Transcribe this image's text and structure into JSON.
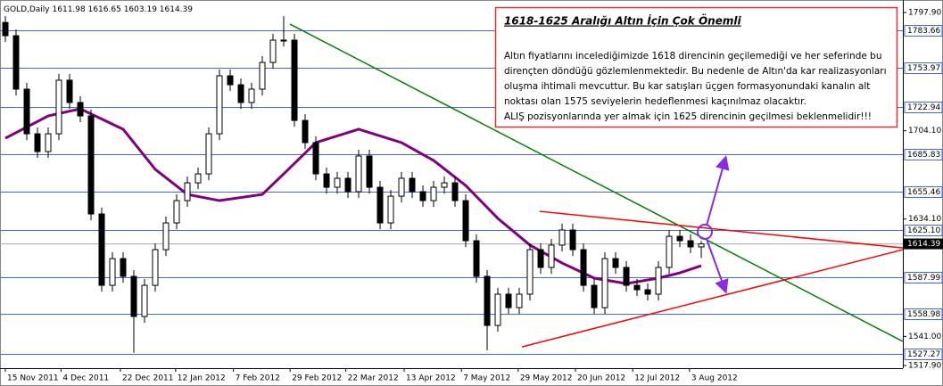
{
  "chart_data": {
    "type": "candlestick",
    "symbol": "GOLD,Daily",
    "open": [
      1790,
      1779.5,
      1737.1,
      1701.7,
      1687.6,
      1701.7,
      1744.2,
      1726.5,
      1715.9,
      1638.1,
      1581.5,
      1602.7,
      1588.6,
      1556.8,
      1581.5,
      1609.8,
      1631.0,
      1648.7,
      1662.8,
      1669.9,
      1701.7,
      1747.7,
      1740.6,
      1726.5,
      1737.1,
      1758.3,
      1776.0,
      1776.0,
      1712.3,
      1694.7,
      1669.9,
      1659.3,
      1666.4,
      1655.8,
      1684.1,
      1659.3,
      1631.0,
      1652.2,
      1666.4,
      1655.8,
      1648.7,
      1659.3,
      1662.8,
      1648.7,
      1616.9,
      1588.6,
      1549.7,
      1574.5,
      1563.8,
      1574.5,
      1609.8,
      1595.7,
      1613.4,
      1625.4,
      1609.8,
      1581.5,
      1563.8,
      1602.7,
      1595.7,
      1581.5,
      1578.0,
      1574.5,
      1595.7,
      1620.4,
      1616.9,
      1611.98
    ],
    "high": [
      1795,
      1784.5,
      1742.1,
      1706.7,
      1706.7,
      1749.2,
      1749.2,
      1731.5,
      1720.9,
      1643.1,
      1607.7,
      1607.7,
      1593.6,
      1586.5,
      1614.8,
      1636.0,
      1653.7,
      1667.8,
      1674.9,
      1706.7,
      1752.7,
      1752.7,
      1745.6,
      1742.1,
      1763.3,
      1781.0,
      1795,
      1781.0,
      1717.3,
      1699.7,
      1674.9,
      1671.4,
      1671.4,
      1689.1,
      1689.1,
      1664.3,
      1657.2,
      1671.4,
      1671.4,
      1660.8,
      1664.3,
      1667.8,
      1667.8,
      1653.7,
      1621.9,
      1593.6,
      1579.5,
      1579.5,
      1579.5,
      1614.8,
      1614.8,
      1618.4,
      1630.4,
      1630.4,
      1614.8,
      1586.5,
      1607.7,
      1607.7,
      1600.7,
      1586.5,
      1583.0,
      1600.7,
      1625.4,
      1625.4,
      1621.9,
      1616.65
    ],
    "low": [
      1774.5,
      1732.1,
      1696.7,
      1682.6,
      1682.6,
      1696.7,
      1721.5,
      1710.9,
      1633.1,
      1576.5,
      1576.5,
      1583.6,
      1528,
      1551.8,
      1576.5,
      1604.8,
      1626.0,
      1643.7,
      1657.8,
      1664.9,
      1696.7,
      1735.6,
      1721.5,
      1721.5,
      1732.1,
      1753.3,
      1771.0,
      1707.3,
      1689.7,
      1664.9,
      1654.3,
      1654.3,
      1650.8,
      1650.8,
      1654.3,
      1626.0,
      1626.0,
      1647.2,
      1650.8,
      1643.7,
      1643.7,
      1654.3,
      1643.7,
      1611.9,
      1583.6,
      1530,
      1544.7,
      1558.8,
      1558.8,
      1569.5,
      1590.7,
      1590.7,
      1608.4,
      1604.8,
      1576.5,
      1558.8,
      1558.8,
      1590.7,
      1576.5,
      1573.0,
      1569.5,
      1569.5,
      1590.7,
      1611.9,
      1606.98,
      1603.19
    ],
    "close": [
      1779.5,
      1737.1,
      1701.7,
      1687.6,
      1701.7,
      1744.2,
      1726.5,
      1715.9,
      1638.1,
      1581.5,
      1602.7,
      1588.6,
      1556.8,
      1581.5,
      1609.8,
      1631.0,
      1648.7,
      1662.8,
      1669.9,
      1701.7,
      1747.7,
      1740.6,
      1726.5,
      1737.1,
      1758.3,
      1776.0,
      1776.0,
      1712.3,
      1694.7,
      1669.9,
      1659.3,
      1666.4,
      1655.8,
      1684.1,
      1659.3,
      1631.0,
      1652.2,
      1666.4,
      1655.8,
      1648.7,
      1659.3,
      1662.8,
      1648.7,
      1616.9,
      1588.6,
      1549.7,
      1574.5,
      1563.8,
      1574.5,
      1609.8,
      1595.7,
      1613.4,
      1625.4,
      1609.8,
      1581.5,
      1563.8,
      1602.7,
      1595.7,
      1581.5,
      1578.0,
      1574.5,
      1595.7,
      1620.4,
      1616.9,
      1611.98,
      1614.39
    ],
    "ma": {
      "color": "#800080",
      "x": [
        0,
        4,
        7,
        11,
        14,
        17,
        20,
        24,
        26,
        29,
        33,
        37,
        40,
        43,
        46,
        49,
        52,
        55,
        58,
        61,
        63,
        65
      ],
      "values": [
        1698.2,
        1715.9,
        1721.5,
        1705.3,
        1673.5,
        1653.6,
        1648.7,
        1653.6,
        1669.9,
        1694.7,
        1705.3,
        1694.7,
        1680.5,
        1660.7,
        1634.6,
        1613.4,
        1599.2,
        1587.2,
        1582.9,
        1587.2,
        1591.4,
        1597.1
      ]
    },
    "trendlines": [
      {
        "color": "#008000",
        "x": [
          26.58,
          83.83
        ],
        "values": [
          1788.7,
          1537.0
        ]
      },
      {
        "color": "#ff0000",
        "x": [
          49.9,
          83.83
        ],
        "values": [
          1640.2,
          1611.2
        ]
      },
      {
        "color": "#ff0000",
        "x": [
          48.25,
          83.83
        ],
        "values": [
          1532.7,
          1609.8
        ]
      }
    ],
    "levels": {
      "color": "#4169e1",
      "values": [
        1783.66,
        1753.97,
        1722.94,
        1685.83,
        1655.46,
        {
          "value": 1625.1,
          "label": "1625.10"
        },
        1587.99,
        1558.98,
        1527.27
      ]
    },
    "xlim": [
      -0.5,
      83.83
    ],
    "xticks": [
      {
        "value": 0,
        "label": "15 Nov 2011"
      },
      {
        "value": 5.2,
        "label": "4 Dec 2011"
      },
      {
        "value": 10.75,
        "label": "22 Dec 2011"
      },
      {
        "value": 15.9,
        "label": "12 Jan 2012"
      },
      {
        "value": 21.3,
        "label": "7 Feb 2012"
      },
      {
        "value": 26.6,
        "label": "29 Feb 2012"
      },
      {
        "value": 31.8,
        "label": "22 Mar 2012"
      },
      {
        "value": 37.25,
        "label": "13 Apr 2012"
      },
      {
        "value": 42.6,
        "label": "7 May 2012"
      },
      {
        "value": 47.9,
        "label": "29 May 2012"
      },
      {
        "value": 53.25,
        "label": "20 Jun 2012"
      },
      {
        "value": 58.6,
        "label": "12 Jul 2012"
      },
      {
        "value": 63.9,
        "label": "3 Aug 2012"
      }
    ],
    "ylim": [
      1515.8,
      1806.4
    ],
    "yticks": [
      {
        "value": 1797.9,
        "label": "1797.90"
      },
      {
        "value": 1704.1,
        "label": "1704.10"
      },
      {
        "value": 1634.1,
        "label": "1634.10"
      },
      {
        "value": 1541,
        "label": "1541.00"
      },
      {
        "value": 1517.9,
        "label": "1517.90"
      }
    ],
    "annotation": {
      "title": "1618-1625 Aralığı Altın İçin Çok Önemli",
      "lines": [
        "Altın fiyatlarını incelediğimizde 1618 direncinin geçilemediği ve her seferinde bu",
        "dirençten döndüğü gözlemlenmektedir. Bu nedenle de Altın'da kar realizasyonları",
        "oluşma ihtimali mevcuttur. Bu kar satışları üçgen formasyonundaki kanalın alt",
        "noktası olan 1575 seviyelerin hedeflenmesi kaçınılmaz olacaktır.",
        "ALIŞ pozisyonlarında yer almak için 1625 direncinin geçilmesi beklenmelidir!!!"
      ]
    }
  }
}
